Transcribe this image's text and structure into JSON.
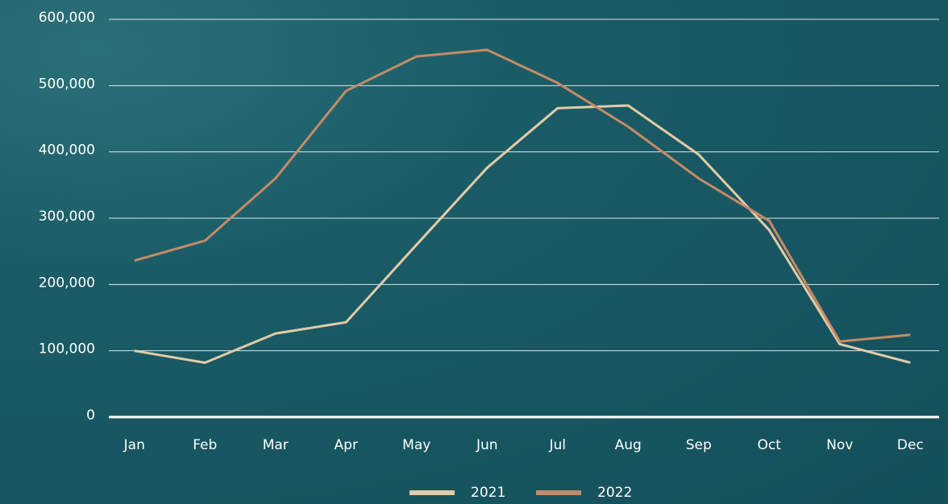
{
  "chart_data": {
    "type": "line",
    "categories": [
      "Jan",
      "Feb",
      "Mar",
      "Apr",
      "May",
      "Jun",
      "Jul",
      "Aug",
      "Sep",
      "Oct",
      "Nov",
      "Dec"
    ],
    "series": [
      {
        "name": "2021",
        "color": "#e3cba6",
        "values": [
          100000,
          82000,
          126000,
          143000,
          260000,
          376000,
          466000,
          470000,
          396000,
          282000,
          110000,
          82000
        ]
      },
      {
        "name": "2022",
        "color": "#c58b66",
        "values": [
          236000,
          266000,
          360000,
          492000,
          544000,
          554000,
          504000,
          438000,
          360000,
          296000,
          114000,
          124000
        ]
      }
    ],
    "ylim": [
      0,
      600000
    ],
    "yticks": [
      0,
      {
        "value": 100000,
        "label": "100,000"
      },
      {
        "value": 200000,
        "label": "200,000"
      },
      {
        "value": 300000,
        "label": "300,000"
      },
      {
        "value": 400000,
        "label": "400,000"
      },
      {
        "value": 500000,
        "label": "500,000"
      },
      {
        "value": 600000,
        "label": "600,000"
      }
    ],
    "grid": true,
    "legend": "bottom"
  }
}
